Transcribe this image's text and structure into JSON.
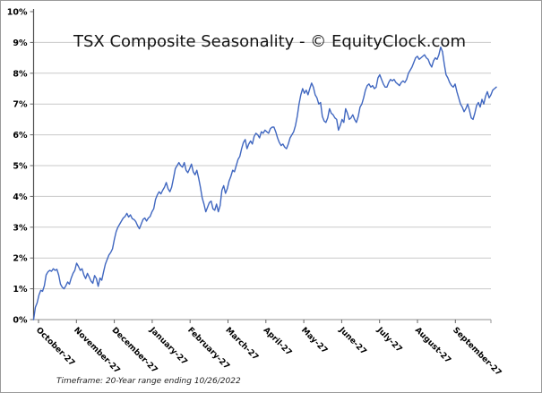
{
  "colors": {
    "line": "#4067c0",
    "grid": "#c9c9c9",
    "axis_y": "#4d4d4d",
    "axis_x": "#a6a6a6",
    "tick": "#666666",
    "text": "#000000",
    "title_text": "#141414",
    "border": "#9a9a9a",
    "background": "#ffffff"
  },
  "chart_data": {
    "type": "line",
    "title": "TSX Composite Seasonality - © EquityClock.com",
    "footnote": "Timeframe: 20-Year range ending 10/26/2022",
    "xlabel": "",
    "ylabel": "",
    "ylim": [
      0,
      10
    ],
    "y_step": 1,
    "y_tick_labels": [
      "0%",
      "1%",
      "2%",
      "3%",
      "4%",
      "5%",
      "6%",
      "7%",
      "8%",
      "9%",
      "10%"
    ],
    "x_tick_labels": [
      "October-27",
      "November-27",
      "December-27",
      "January-27",
      "February-27",
      "March-27",
      "April-27",
      "May-27",
      "June-27",
      "July-27",
      "August-27",
      "September-27"
    ],
    "grid": "horizontal",
    "legend": "none",
    "series": [
      {
        "name": "TSX Composite Seasonality (%)",
        "values": [
          0.0,
          0.4,
          0.55,
          0.8,
          0.95,
          0.92,
          1.1,
          1.45,
          1.55,
          1.6,
          1.57,
          1.65,
          1.6,
          1.63,
          1.45,
          1.15,
          1.05,
          1.0,
          1.1,
          1.22,
          1.15,
          1.35,
          1.5,
          1.6,
          1.83,
          1.73,
          1.6,
          1.65,
          1.45,
          1.33,
          1.5,
          1.38,
          1.25,
          1.18,
          1.43,
          1.33,
          1.08,
          1.35,
          1.28,
          1.55,
          1.8,
          1.95,
          2.1,
          2.18,
          2.3,
          2.6,
          2.85,
          3.0,
          3.1,
          3.2,
          3.3,
          3.35,
          3.45,
          3.33,
          3.4,
          3.28,
          3.25,
          3.18,
          3.05,
          2.95,
          3.1,
          3.25,
          3.3,
          3.2,
          3.3,
          3.35,
          3.5,
          3.6,
          3.9,
          4.05,
          4.15,
          4.08,
          4.2,
          4.3,
          4.45,
          4.25,
          4.15,
          4.3,
          4.6,
          4.9,
          5.0,
          5.1,
          5.0,
          4.95,
          5.1,
          4.85,
          4.77,
          4.9,
          5.05,
          4.8,
          4.7,
          4.85,
          4.6,
          4.3,
          3.95,
          3.75,
          3.5,
          3.65,
          3.8,
          3.85,
          3.6,
          3.55,
          3.75,
          3.5,
          3.7,
          4.2,
          4.35,
          4.1,
          4.25,
          4.5,
          4.65,
          4.85,
          4.8,
          5.0,
          5.2,
          5.3,
          5.55,
          5.75,
          5.85,
          5.55,
          5.7,
          5.8,
          5.7,
          5.95,
          6.05,
          6.0,
          5.9,
          6.1,
          6.05,
          6.15,
          6.1,
          6.05,
          6.2,
          6.25,
          6.25,
          6.1,
          5.9,
          5.75,
          5.65,
          5.7,
          5.6,
          5.55,
          5.7,
          5.9,
          6.0,
          6.1,
          6.3,
          6.6,
          7.0,
          7.3,
          7.5,
          7.35,
          7.45,
          7.3,
          7.5,
          7.68,
          7.55,
          7.3,
          7.2,
          7.0,
          7.05,
          6.6,
          6.45,
          6.4,
          6.55,
          6.85,
          6.7,
          6.65,
          6.55,
          6.5,
          6.15,
          6.3,
          6.5,
          6.4,
          6.85,
          6.7,
          6.5,
          6.55,
          6.65,
          6.5,
          6.4,
          6.6,
          6.9,
          7.0,
          7.2,
          7.45,
          7.6,
          7.65,
          7.55,
          7.6,
          7.5,
          7.55,
          7.85,
          7.95,
          7.8,
          7.65,
          7.55,
          7.55,
          7.7,
          7.8,
          7.75,
          7.8,
          7.7,
          7.65,
          7.6,
          7.7,
          7.75,
          7.7,
          7.8,
          8.0,
          8.1,
          8.2,
          8.35,
          8.5,
          8.55,
          8.45,
          8.5,
          8.55,
          8.6,
          8.5,
          8.45,
          8.3,
          8.2,
          8.4,
          8.5,
          8.45,
          8.6,
          8.85,
          8.7,
          8.3,
          7.95,
          7.85,
          7.7,
          7.6,
          7.55,
          7.65,
          7.4,
          7.2,
          7.0,
          6.9,
          6.75,
          6.85,
          7.0,
          6.8,
          6.55,
          6.5,
          6.7,
          6.95,
          7.05,
          6.9,
          7.15,
          7.0,
          7.25,
          7.4,
          7.2,
          7.3,
          7.45,
          7.5,
          7.55
        ]
      }
    ]
  }
}
